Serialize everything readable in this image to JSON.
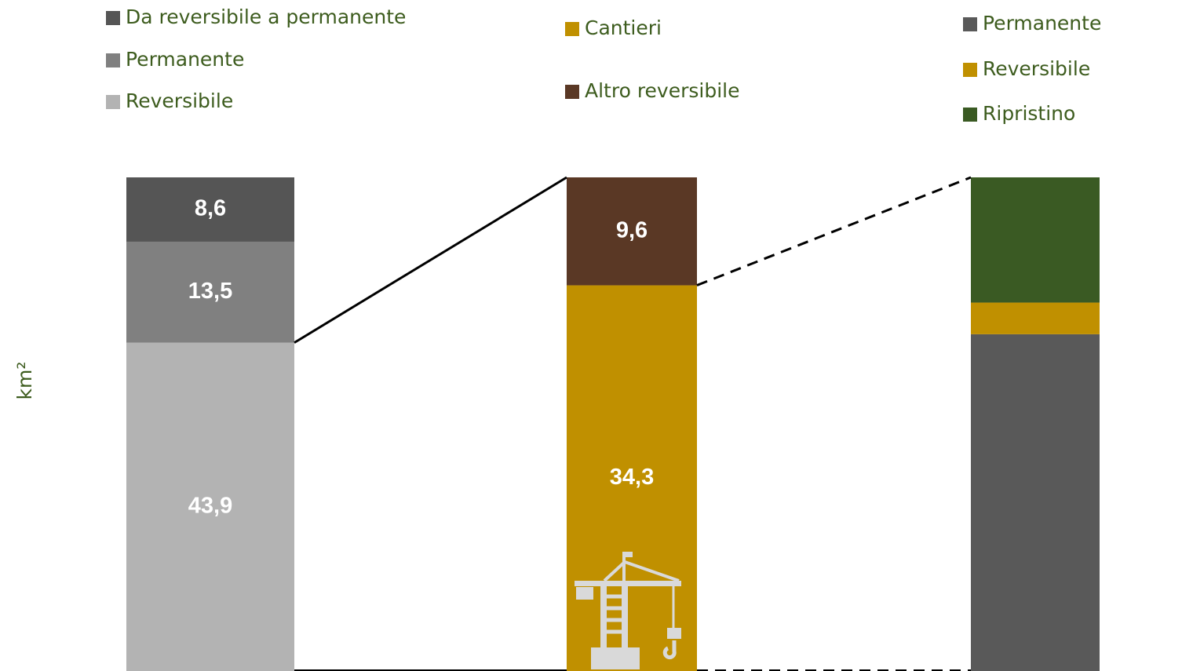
{
  "chart_data": [
    {
      "type": "stacked_bar",
      "ylabel": "km²",
      "series": [
        {
          "name": "Reversibile",
          "color": "#b3b3b3",
          "values": [
            43.9
          ],
          "value_labels": [
            "43,9"
          ]
        },
        {
          "name": "Permanente",
          "color": "#808080",
          "values": [
            13.5
          ],
          "value_labels": [
            "13,5"
          ]
        },
        {
          "name": "Da reversibile a permanente",
          "color": "#555555",
          "values": [
            8.6
          ],
          "value_labels": [
            "8,6"
          ]
        }
      ]
    },
    {
      "type": "stacked_bar",
      "series": [
        {
          "name": "Cantieri",
          "color": "#c09000",
          "values": [
            34.3
          ],
          "value_labels": [
            "34,3"
          ]
        },
        {
          "name": "Altro reversibile",
          "color": "#5a3825",
          "values": [
            9.6
          ],
          "value_labels": [
            "9,6"
          ]
        }
      ]
    },
    {
      "type": "stacked_bar",
      "series": [
        {
          "name": "Permanente",
          "color": "#595959",
          "values": [
            23.4
          ]
        },
        {
          "name": "Reversibile",
          "color": "#c09000",
          "values": [
            2.2
          ]
        },
        {
          "name": "Ripristino",
          "color": "#3a5a23",
          "values": [
            8.7
          ]
        }
      ]
    }
  ]
}
